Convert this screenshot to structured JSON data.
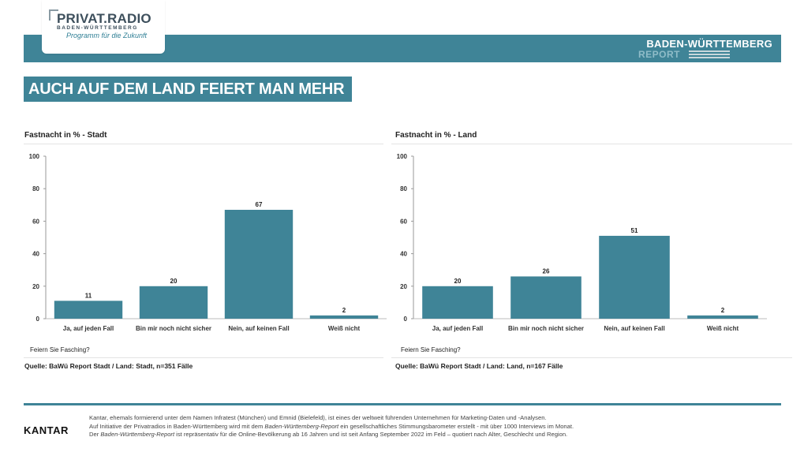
{
  "header": {
    "logo_main": "PRIVAT.RADIO",
    "logo_region": "BADEN-WÜRTTEMBERG",
    "logo_tagline": "Programm für die Zukunft",
    "report_title": "BADEN-WÜRTTEMBERG",
    "report_sub": "REPORT",
    "colors": {
      "bar": "#3f8497",
      "accent": "#3f8497"
    }
  },
  "headline": "AUCH AUF DEM LAND FEIERT MAN MEHR",
  "chart_data": [
    {
      "type": "bar",
      "title": "Fastnacht in % - Stadt",
      "categories": [
        "Ja, auf jeden Fall",
        "Bin mir noch nicht sicher",
        "Nein, auf keinen Fall",
        "Weiß nicht"
      ],
      "values": [
        11,
        20,
        67,
        2
      ],
      "ylim": [
        0,
        100
      ],
      "yticks": [
        "0",
        "20",
        "40",
        "60",
        "80",
        "100"
      ],
      "question": "Feiern Sie Fasching?",
      "source": "Quelle: BaWü Report Stadt / Land: Stadt, n=351 Fälle"
    },
    {
      "type": "bar",
      "title": "Fastnacht in % - Land",
      "categories": [
        "Ja, auf jeden Fall",
        "Bin mir noch nicht sicher",
        "Nein, auf keinen Fall",
        "Weiß nicht"
      ],
      "values": [
        20,
        26,
        51,
        2
      ],
      "ylim": [
        0,
        100
      ],
      "yticks": [
        "0",
        "20",
        "40",
        "60",
        "80",
        "100"
      ],
      "question": "Feiern Sie Fasching?",
      "source": "Quelle: BaWü Report Stadt / Land: Land, n=167 Fälle"
    }
  ],
  "footer": {
    "brand": "KANTAR",
    "line1": "Kantar, ehemals formierend unter dem Namen Infratest (München) und Emnid (Bielefeld), ist eines der weltweit führenden Unternehmen für Marketing-Daten und -Analysen.",
    "line2a": "Auf Initiative der Privatradios in Baden-Württemberg wird mit dem ",
    "line2b": "Baden-Württemberg-Report",
    "line2c": " ein gesellschaftliches Stimmungsbarometer erstellt - mit über 1000 Interviews im Monat.",
    "line3a": "Der ",
    "line3b": "Baden-Württemberg-Report",
    "line3c": " ist repräsentativ für die Online-Bevölkerung ab 16 Jahren und ist seit Anfang September 2022 im Feld – quotiert nach Alter, Geschlecht und Region."
  }
}
